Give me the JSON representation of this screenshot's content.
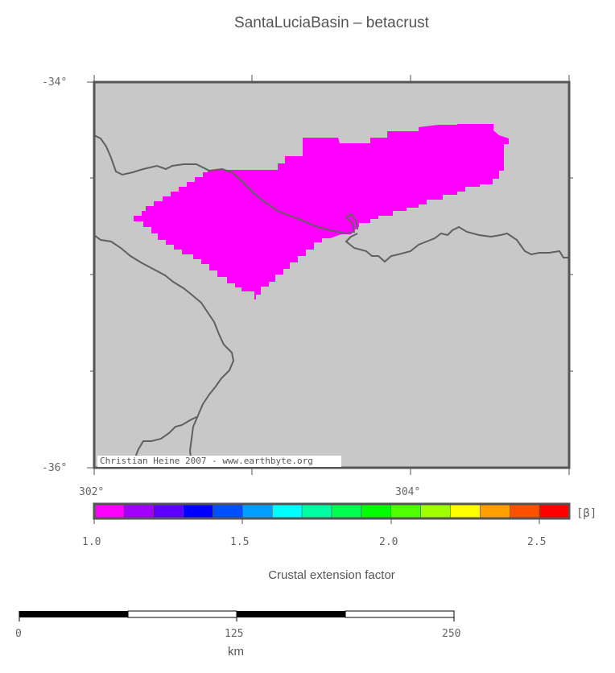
{
  "title": "SantaLuciaBasin – betacrust",
  "map": {
    "lat_labels": [
      "-34°",
      "-36°"
    ],
    "lon_labels": [
      "302°",
      "304°"
    ],
    "credit": "Christian Heine 2007 - www.earthbyte.org",
    "colors": {
      "land": "#c8c8c8",
      "basin": "#ff00ff",
      "coast": "#606060",
      "frame": "#555555"
    }
  },
  "colorbar": {
    "unit": "[β]",
    "ticks": [
      "1.0",
      "1.5",
      "2.0",
      "2.5"
    ],
    "label": "Crustal extension factor",
    "colors": [
      "#ff00ff",
      "#a000ff",
      "#5a00ff",
      "#0000ff",
      "#0050ff",
      "#00a0ff",
      "#00ffff",
      "#00ffa0",
      "#00ff50",
      "#00ff00",
      "#50ff00",
      "#a0ff00",
      "#ffff00",
      "#ffa000",
      "#ff5000",
      "#ff0000"
    ]
  },
  "scalebar": {
    "ticks": [
      "0",
      "125",
      "250"
    ],
    "unit": "km"
  }
}
